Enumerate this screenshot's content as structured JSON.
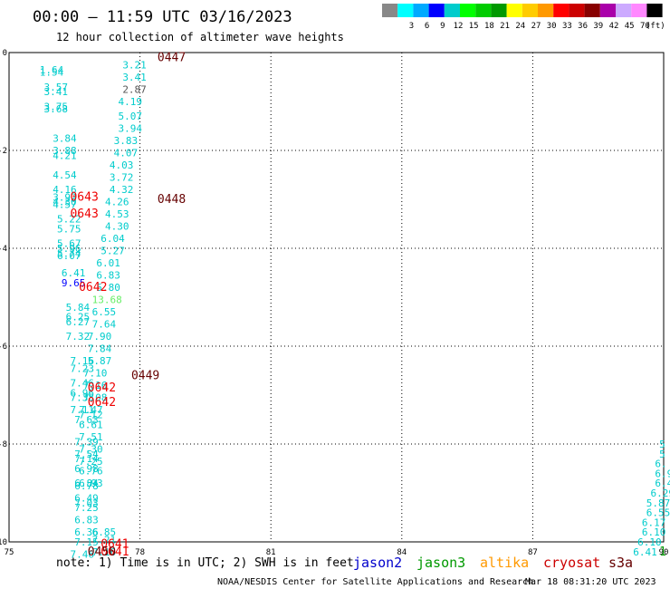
{
  "header": {
    "title": "00:00 – 11:59 UTC 03/16/2023",
    "subtitle": "12 hour collection of altimeter wave heights"
  },
  "legend": {
    "unit": "(ft)",
    "items": [
      {
        "label": "",
        "color": "#888888"
      },
      {
        "label": "3",
        "color": "#00ffff"
      },
      {
        "label": "6",
        "color": "#00aaff"
      },
      {
        "label": "9",
        "color": "#0000ff"
      },
      {
        "label": "12",
        "color": "#00cccc"
      },
      {
        "label": "15",
        "color": "#00ff00"
      },
      {
        "label": "18",
        "color": "#00cc00"
      },
      {
        "label": "21",
        "color": "#009900"
      },
      {
        "label": "24",
        "color": "#ffff00"
      },
      {
        "label": "27",
        "color": "#ffcc00"
      },
      {
        "label": "30",
        "color": "#ff9900"
      },
      {
        "label": "33",
        "color": "#ff0000"
      },
      {
        "label": "36",
        "color": "#cc0000"
      },
      {
        "label": "39",
        "color": "#880000"
      },
      {
        "label": "42",
        "color": "#aa00aa"
      },
      {
        "label": "45",
        "color": "#ccaaff"
      },
      {
        "label": "70",
        "color": "#ff88ff"
      },
      {
        "label": "",
        "color": "#000000"
      }
    ]
  },
  "notes": {
    "note": "note:  1) Time is in UTC; 2) SWH is in feet",
    "satellites": [
      {
        "name": "jason2",
        "color": "#0000cc"
      },
      {
        "name": "jason3",
        "color": "#009900"
      },
      {
        "name": "altika",
        "color": "#ff9900"
      },
      {
        "name": "cryosat",
        "color": "#cc0000"
      },
      {
        "name": "s3a",
        "color": "#660000"
      }
    ]
  },
  "footer": {
    "credit": "NOAA/NESDIS Center for Satellite Applications and Research",
    "timestamp": "Mar 18 08:31:20 UTC 2023"
  },
  "chart_data": {
    "type": "scatter",
    "title": "00:00 – 11:59 UTC 03/16/2023",
    "subtitle": "12 hour collection of altimeter wave heights",
    "xlim": [
      75,
      90
    ],
    "ylim": [
      -10,
      0
    ],
    "x_ticks": [
      "75",
      "78",
      "81",
      "84",
      "87",
      "90"
    ],
    "x_tick_values": [
      75,
      78,
      81,
      84,
      87,
      90
    ],
    "y_ticks": [
      "0",
      "-2",
      "-4",
      "-6",
      "-8",
      "-10"
    ],
    "y_tick_values": [
      0,
      -2,
      -4,
      -6,
      -8,
      -10
    ],
    "grid": true,
    "observations": [
      {
        "lon": 75.7,
        "lat": -0.35,
        "text": "1.64",
        "color": "#00cccc"
      },
      {
        "lon": 75.7,
        "lat": -0.4,
        "text": "1.54",
        "color": "#00cccc"
      },
      {
        "lon": 75.8,
        "lat": -0.7,
        "text": "3.57",
        "color": "#00cccc"
      },
      {
        "lon": 75.8,
        "lat": -0.8,
        "text": "3.41",
        "color": "#00cccc"
      },
      {
        "lon": 75.8,
        "lat": -1.1,
        "text": "3.75",
        "color": "#00cccc"
      },
      {
        "lon": 75.8,
        "lat": -1.15,
        "text": "3.68",
        "color": "#00cccc"
      },
      {
        "lon": 76.0,
        "lat": -1.75,
        "text": "3.84",
        "color": "#00cccc"
      },
      {
        "lon": 76.0,
        "lat": -2.0,
        "text": "3.88",
        "color": "#00cccc"
      },
      {
        "lon": 76.0,
        "lat": -2.1,
        "text": "4.21",
        "color": "#00cccc"
      },
      {
        "lon": 76.0,
        "lat": -2.5,
        "text": "4.54",
        "color": "#00cccc"
      },
      {
        "lon": 76.0,
        "lat": -2.8,
        "text": "4.16",
        "color": "#00cccc"
      },
      {
        "lon": 76.0,
        "lat": -2.95,
        "text": "3.92",
        "color": "#00cccc"
      },
      {
        "lon": 76.0,
        "lat": -3.05,
        "text": "4.30",
        "color": "#00cccc"
      },
      {
        "lon": 76.0,
        "lat": -3.1,
        "text": "4.57",
        "color": "#00cccc"
      },
      {
        "lon": 76.1,
        "lat": -3.4,
        "text": "5.22",
        "color": "#00cccc"
      },
      {
        "lon": 76.1,
        "lat": -3.6,
        "text": "5.75",
        "color": "#00cccc"
      },
      {
        "lon": 76.1,
        "lat": -3.9,
        "text": "5.67",
        "color": "#00cccc"
      },
      {
        "lon": 76.1,
        "lat": -4.0,
        "text": "5.96",
        "color": "#00cccc"
      },
      {
        "lon": 76.1,
        "lat": -4.1,
        "text": "5.74",
        "color": "#00cccc"
      },
      {
        "lon": 76.1,
        "lat": -4.15,
        "text": "6.07",
        "color": "#00cccc"
      },
      {
        "lon": 76.2,
        "lat": -4.5,
        "text": "6.41",
        "color": "#00cccc"
      },
      {
        "lon": 76.2,
        "lat": -4.7,
        "text": "9.65",
        "color": "#0000ff"
      },
      {
        "lon": 76.3,
        "lat": -5.2,
        "text": "5.84",
        "color": "#00cccc"
      },
      {
        "lon": 76.3,
        "lat": -5.4,
        "text": "6.25",
        "color": "#00cccc"
      },
      {
        "lon": 76.3,
        "lat": -5.5,
        "text": "6.27",
        "color": "#00cccc"
      },
      {
        "lon": 76.3,
        "lat": -5.8,
        "text": "7.32",
        "color": "#00cccc"
      },
      {
        "lon": 76.4,
        "lat": -6.3,
        "text": "7.16",
        "color": "#00cccc"
      },
      {
        "lon": 76.4,
        "lat": -6.45,
        "text": "7.23",
        "color": "#00cccc"
      },
      {
        "lon": 76.4,
        "lat": -6.75,
        "text": "7.46",
        "color": "#00cccc"
      },
      {
        "lon": 76.4,
        "lat": -6.95,
        "text": "6.96",
        "color": "#00cccc"
      },
      {
        "lon": 76.4,
        "lat": -7.05,
        "text": "7.38",
        "color": "#00cccc"
      },
      {
        "lon": 76.4,
        "lat": -7.3,
        "text": "7.11",
        "color": "#00cccc"
      },
      {
        "lon": 76.5,
        "lat": -7.5,
        "text": "7.63",
        "color": "#00cccc"
      },
      {
        "lon": 76.5,
        "lat": -7.95,
        "text": "7.39",
        "color": "#00cccc"
      },
      {
        "lon": 76.5,
        "lat": -8.2,
        "text": "7.54",
        "color": "#00cccc"
      },
      {
        "lon": 76.5,
        "lat": -8.3,
        "text": "7.14",
        "color": "#00cccc"
      },
      {
        "lon": 76.5,
        "lat": -8.5,
        "text": "6.98",
        "color": "#00cccc"
      },
      {
        "lon": 76.5,
        "lat": -8.8,
        "text": "6.84",
        "color": "#00cccc"
      },
      {
        "lon": 76.5,
        "lat": -8.85,
        "text": "6.78",
        "color": "#00cccc"
      },
      {
        "lon": 76.5,
        "lat": -9.1,
        "text": "6.49",
        "color": "#00cccc"
      },
      {
        "lon": 76.5,
        "lat": -9.2,
        "text": "7.03",
        "color": "#00cccc"
      },
      {
        "lon": 76.5,
        "lat": -9.3,
        "text": "7.25",
        "color": "#00cccc"
      },
      {
        "lon": 76.5,
        "lat": -9.55,
        "text": "6.83",
        "color": "#00cccc"
      },
      {
        "lon": 76.5,
        "lat": -9.8,
        "text": "6.36",
        "color": "#00cccc"
      },
      {
        "lon": 76.5,
        "lat": -10.0,
        "text": "7.15",
        "color": "#00cccc"
      },
      {
        "lon": 76.4,
        "lat": -10.25,
        "text": "7.46",
        "color": "#00cccc"
      },
      {
        "lon": 76.9,
        "lat": -9.8,
        "text": "6.85",
        "color": "#00cccc"
      },
      {
        "lon": 76.9,
        "lat": -9.95,
        "text": "7.21",
        "color": "#00cccc"
      },
      {
        "lon": 76.9,
        "lat": -10.2,
        "text": "7.16",
        "color": "#00cccc"
      },
      {
        "lon": 77.6,
        "lat": -0.25,
        "text": "3.21",
        "color": "#00cccc"
      },
      {
        "lon": 77.6,
        "lat": -0.5,
        "text": "3.41",
        "color": "#00cccc"
      },
      {
        "lon": 77.6,
        "lat": -0.75,
        "text": "2.87",
        "color": "#555555"
      },
      {
        "lon": 77.5,
        "lat": -1.0,
        "text": "4.19",
        "color": "#00cccc"
      },
      {
        "lon": 77.5,
        "lat": -1.3,
        "text": "5.07",
        "color": "#00cccc"
      },
      {
        "lon": 77.5,
        "lat": -1.55,
        "text": "3.94",
        "color": "#00cccc"
      },
      {
        "lon": 77.4,
        "lat": -1.8,
        "text": "3.83",
        "color": "#00cccc"
      },
      {
        "lon": 77.4,
        "lat": -2.05,
        "text": "4.07",
        "color": "#00cccc"
      },
      {
        "lon": 77.3,
        "lat": -2.3,
        "text": "4.03",
        "color": "#00cccc"
      },
      {
        "lon": 77.3,
        "lat": -2.55,
        "text": "3.72",
        "color": "#00cccc"
      },
      {
        "lon": 77.3,
        "lat": -2.8,
        "text": "4.32",
        "color": "#00cccc"
      },
      {
        "lon": 77.2,
        "lat": -3.05,
        "text": "4.26",
        "color": "#00cccc"
      },
      {
        "lon": 77.2,
        "lat": -3.3,
        "text": "4.53",
        "color": "#00cccc"
      },
      {
        "lon": 77.2,
        "lat": -3.55,
        "text": "4.30",
        "color": "#00cccc"
      },
      {
        "lon": 77.1,
        "lat": -3.8,
        "text": "6.04",
        "color": "#00cccc"
      },
      {
        "lon": 77.1,
        "lat": -4.05,
        "text": "5.27",
        "color": "#00cccc"
      },
      {
        "lon": 77.0,
        "lat": -4.3,
        "text": "6.01",
        "color": "#00cccc"
      },
      {
        "lon": 77.0,
        "lat": -4.55,
        "text": "6.83",
        "color": "#00cccc"
      },
      {
        "lon": 77.0,
        "lat": -4.8,
        "text": "5.80",
        "color": "#00cccc"
      },
      {
        "lon": 76.9,
        "lat": -5.05,
        "text": "13.68",
        "color": "#66ee66"
      },
      {
        "lon": 76.9,
        "lat": -5.3,
        "text": "6.55",
        "color": "#00cccc"
      },
      {
        "lon": 76.9,
        "lat": -5.55,
        "text": "7.64",
        "color": "#00cccc"
      },
      {
        "lon": 76.8,
        "lat": -5.8,
        "text": "7.90",
        "color": "#00cccc"
      },
      {
        "lon": 76.8,
        "lat": -6.05,
        "text": "7.84",
        "color": "#00cccc"
      },
      {
        "lon": 76.8,
        "lat": -6.3,
        "text": "5.87",
        "color": "#00cccc"
      },
      {
        "lon": 76.7,
        "lat": -6.55,
        "text": "7.10",
        "color": "#00cccc"
      },
      {
        "lon": 76.7,
        "lat": -6.8,
        "text": "7.16",
        "color": "#00cccc"
      },
      {
        "lon": 76.7,
        "lat": -7.05,
        "text": "7.08",
        "color": "#00cccc"
      },
      {
        "lon": 76.6,
        "lat": -7.3,
        "text": "7.47",
        "color": "#00cccc"
      },
      {
        "lon": 76.6,
        "lat": -7.4,
        "text": "7.12",
        "color": "#00cccc"
      },
      {
        "lon": 76.6,
        "lat": -7.6,
        "text": "6.61",
        "color": "#00cccc"
      },
      {
        "lon": 76.6,
        "lat": -7.85,
        "text": "7.51",
        "color": "#00cccc"
      },
      {
        "lon": 76.6,
        "lat": -8.1,
        "text": "7.30",
        "color": "#00cccc"
      },
      {
        "lon": 76.6,
        "lat": -8.35,
        "text": "7.25",
        "color": "#00cccc"
      },
      {
        "lon": 76.6,
        "lat": -8.55,
        "text": "6.76",
        "color": "#00cccc"
      },
      {
        "lon": 76.6,
        "lat": -8.8,
        "text": "6.93",
        "color": "#00cccc"
      },
      {
        "lon": 89.9,
        "lat": -8.0,
        "text": "5",
        "color": "#00cccc"
      },
      {
        "lon": 89.9,
        "lat": -8.2,
        "text": "5",
        "color": "#00cccc"
      },
      {
        "lon": 89.8,
        "lat": -8.4,
        "text": "6.",
        "color": "#00cccc"
      },
      {
        "lon": 89.8,
        "lat": -8.6,
        "text": "6.9",
        "color": "#00cccc"
      },
      {
        "lon": 89.8,
        "lat": -8.8,
        "text": "6.4",
        "color": "#00cccc"
      },
      {
        "lon": 89.7,
        "lat": -9.0,
        "text": "6.29",
        "color": "#00cccc"
      },
      {
        "lon": 89.6,
        "lat": -9.2,
        "text": "5.87",
        "color": "#00cccc"
      },
      {
        "lon": 89.6,
        "lat": -9.4,
        "text": "6.55",
        "color": "#00cccc"
      },
      {
        "lon": 89.5,
        "lat": -9.6,
        "text": "6.17",
        "color": "#00cccc"
      },
      {
        "lon": 89.5,
        "lat": -9.8,
        "text": "6.10",
        "color": "#00cccc"
      },
      {
        "lon": 89.4,
        "lat": -10.0,
        "text": "6.10",
        "color": "#00cccc"
      },
      {
        "lon": 89.3,
        "lat": -10.2,
        "text": "6.41",
        "color": "#00cccc"
      }
    ],
    "pass_times": [
      {
        "lon": 78.4,
        "lat": -0.1,
        "text": "0447",
        "color": "#660000"
      },
      {
        "lon": 78.4,
        "lat": -3.0,
        "text": "0448",
        "color": "#660000"
      },
      {
        "lon": 76.4,
        "lat": -2.95,
        "text": "0643",
        "color": "#ee0000"
      },
      {
        "lon": 76.4,
        "lat": -3.3,
        "text": "0643",
        "color": "#ee0000"
      },
      {
        "lon": 76.6,
        "lat": -4.8,
        "text": "0642",
        "color": "#ee0000"
      },
      {
        "lon": 77.8,
        "lat": -6.6,
        "text": "0449",
        "color": "#660000"
      },
      {
        "lon": 76.8,
        "lat": -6.85,
        "text": "0642",
        "color": "#ee0000"
      },
      {
        "lon": 76.8,
        "lat": -7.15,
        "text": "0642",
        "color": "#ee0000"
      },
      {
        "lon": 77.1,
        "lat": -10.05,
        "text": "0641",
        "color": "#ee0000"
      },
      {
        "lon": 77.1,
        "lat": -10.2,
        "text": "0641",
        "color": "#ee0000"
      },
      {
        "lon": 76.8,
        "lat": -10.2,
        "text": "0450",
        "color": "#660000"
      },
      {
        "lon": 89.9,
        "lat": -10.2,
        "text": "1",
        "color": "#009900"
      }
    ]
  }
}
